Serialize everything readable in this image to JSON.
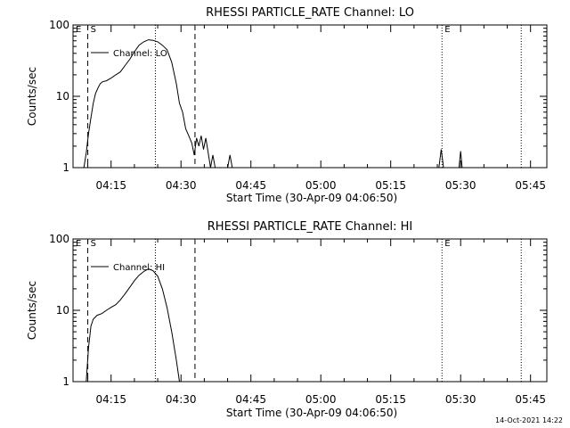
{
  "footer": {
    "timestamp": "14-Oct-2021 14:22"
  },
  "colors": {
    "background": "#ffffff",
    "foreground": "#000000"
  },
  "chart_data": [
    {
      "type": "line",
      "title": "RHESSI PARTICLE_RATE Channel: LO",
      "xlabel": "Start Time (30-Apr-09 04:06:50)",
      "ylabel": "Counts/sec",
      "y_scale": "log",
      "ylim": [
        1,
        100
      ],
      "xlim": [
        "04:06:50",
        "05:48:30"
      ],
      "x_ticks": [
        "04:15",
        "04:30",
        "04:45",
        "05:00",
        "05:15",
        "05:30",
        "05:45"
      ],
      "y_ticks": [
        "1",
        "10",
        "100"
      ],
      "legend": {
        "position": "top-left",
        "label": "Channel: LO"
      },
      "markers": [
        {
          "label": "E",
          "time": "04:06:50",
          "style": "none"
        },
        {
          "label": "S",
          "time": "04:10:00",
          "style": "dashed"
        },
        {
          "label": "",
          "time": "04:24:30",
          "style": "dotted"
        },
        {
          "label": "",
          "time": "04:33:00",
          "style": "dashed"
        },
        {
          "label": "E",
          "time": "05:26:00",
          "style": "dotted"
        },
        {
          "label": "",
          "time": "05:43:00",
          "style": "dotted"
        }
      ],
      "series": [
        {
          "name": "Channel: LO",
          "points": [
            [
              "04:09:10",
              1
            ],
            [
              "04:09:40",
              1.6
            ],
            [
              "04:10:10",
              3
            ],
            [
              "04:10:40",
              5
            ],
            [
              "04:11:10",
              8
            ],
            [
              "04:11:40",
              11
            ],
            [
              "04:12:10",
              13
            ],
            [
              "04:12:40",
              15
            ],
            [
              "04:13:10",
              16
            ],
            [
              "04:14:00",
              16.5
            ],
            [
              "04:15:00",
              18
            ],
            [
              "04:16:00",
              20
            ],
            [
              "04:17:00",
              22
            ],
            [
              "04:18:00",
              27
            ],
            [
              "04:19:00",
              33
            ],
            [
              "04:20:00",
              42
            ],
            [
              "04:21:00",
              52
            ],
            [
              "04:22:00",
              58
            ],
            [
              "04:23:00",
              62
            ],
            [
              "04:24:00",
              61
            ],
            [
              "04:25:00",
              58
            ],
            [
              "04:26:00",
              52
            ],
            [
              "04:27:00",
              45
            ],
            [
              "04:28:00",
              30
            ],
            [
              "04:29:00",
              15
            ],
            [
              "04:29:40",
              8
            ],
            [
              "04:30:20",
              6
            ],
            [
              "04:31:00",
              3.5
            ],
            [
              "04:31:40",
              2.8
            ],
            [
              "04:32:20",
              2.2
            ],
            [
              "04:32:50",
              1.5
            ],
            [
              "04:33:20",
              2.6
            ],
            [
              "04:33:50",
              2.0
            ],
            [
              "04:34:20",
              2.8
            ],
            [
              "04:34:50",
              1.8
            ],
            [
              "04:35:20",
              2.6
            ],
            [
              "04:35:50",
              1.6
            ],
            [
              "04:36:20",
              1.0
            ],
            [
              "04:36:50",
              1.5
            ],
            [
              "04:37:20",
              1.0
            ],
            [
              "04:40:00",
              1.0
            ],
            [
              "04:40:30",
              1.5
            ],
            [
              "04:41:00",
              1.0
            ],
            [
              "05:25:20",
              1.0
            ],
            [
              "05:25:50",
              1.8
            ],
            [
              "05:26:20",
              1.0
            ],
            [
              "05:29:40",
              1.0
            ],
            [
              "05:30:00",
              1.7
            ],
            [
              "05:30:20",
              1.0
            ]
          ]
        }
      ]
    },
    {
      "type": "line",
      "title": "RHESSI PARTICLE_RATE Channel: HI",
      "xlabel": "Start Time (30-Apr-09 04:06:50)",
      "ylabel": "Counts/sec",
      "y_scale": "log",
      "ylim": [
        1,
        100
      ],
      "xlim": [
        "04:06:50",
        "05:48:30"
      ],
      "x_ticks": [
        "04:15",
        "04:30",
        "04:45",
        "05:00",
        "05:15",
        "05:30",
        "05:45"
      ],
      "y_ticks": [
        "1",
        "10",
        "100"
      ],
      "legend": {
        "position": "top-left",
        "label": "Channel: HI"
      },
      "markers": [
        {
          "label": "E",
          "time": "04:06:50",
          "style": "none"
        },
        {
          "label": "S",
          "time": "04:10:00",
          "style": "dashed"
        },
        {
          "label": "",
          "time": "04:24:30",
          "style": "dotted"
        },
        {
          "label": "",
          "time": "04:33:00",
          "style": "dashed"
        },
        {
          "label": "E",
          "time": "05:26:00",
          "style": "dotted"
        },
        {
          "label": "",
          "time": "05:43:00",
          "style": "dotted"
        }
      ],
      "series": [
        {
          "name": "Channel: HI",
          "points": [
            [
              "04:09:40",
              1
            ],
            [
              "04:10:10",
              3
            ],
            [
              "04:10:40",
              6
            ],
            [
              "04:11:10",
              7.5
            ],
            [
              "04:12:00",
              8.5
            ],
            [
              "04:13:00",
              9
            ],
            [
              "04:14:00",
              10
            ],
            [
              "04:15:00",
              11
            ],
            [
              "04:16:00",
              12
            ],
            [
              "04:17:00",
              14
            ],
            [
              "04:18:00",
              17
            ],
            [
              "04:19:00",
              21
            ],
            [
              "04:20:00",
              26
            ],
            [
              "04:21:00",
              31
            ],
            [
              "04:22:00",
              35
            ],
            [
              "04:23:00",
              38
            ],
            [
              "04:24:00",
              36
            ],
            [
              "04:25:00",
              30
            ],
            [
              "04:26:00",
              20
            ],
            [
              "04:27:00",
              11
            ],
            [
              "04:28:00",
              5
            ],
            [
              "04:29:00",
              2
            ],
            [
              "04:29:40",
              1
            ]
          ]
        }
      ]
    }
  ]
}
